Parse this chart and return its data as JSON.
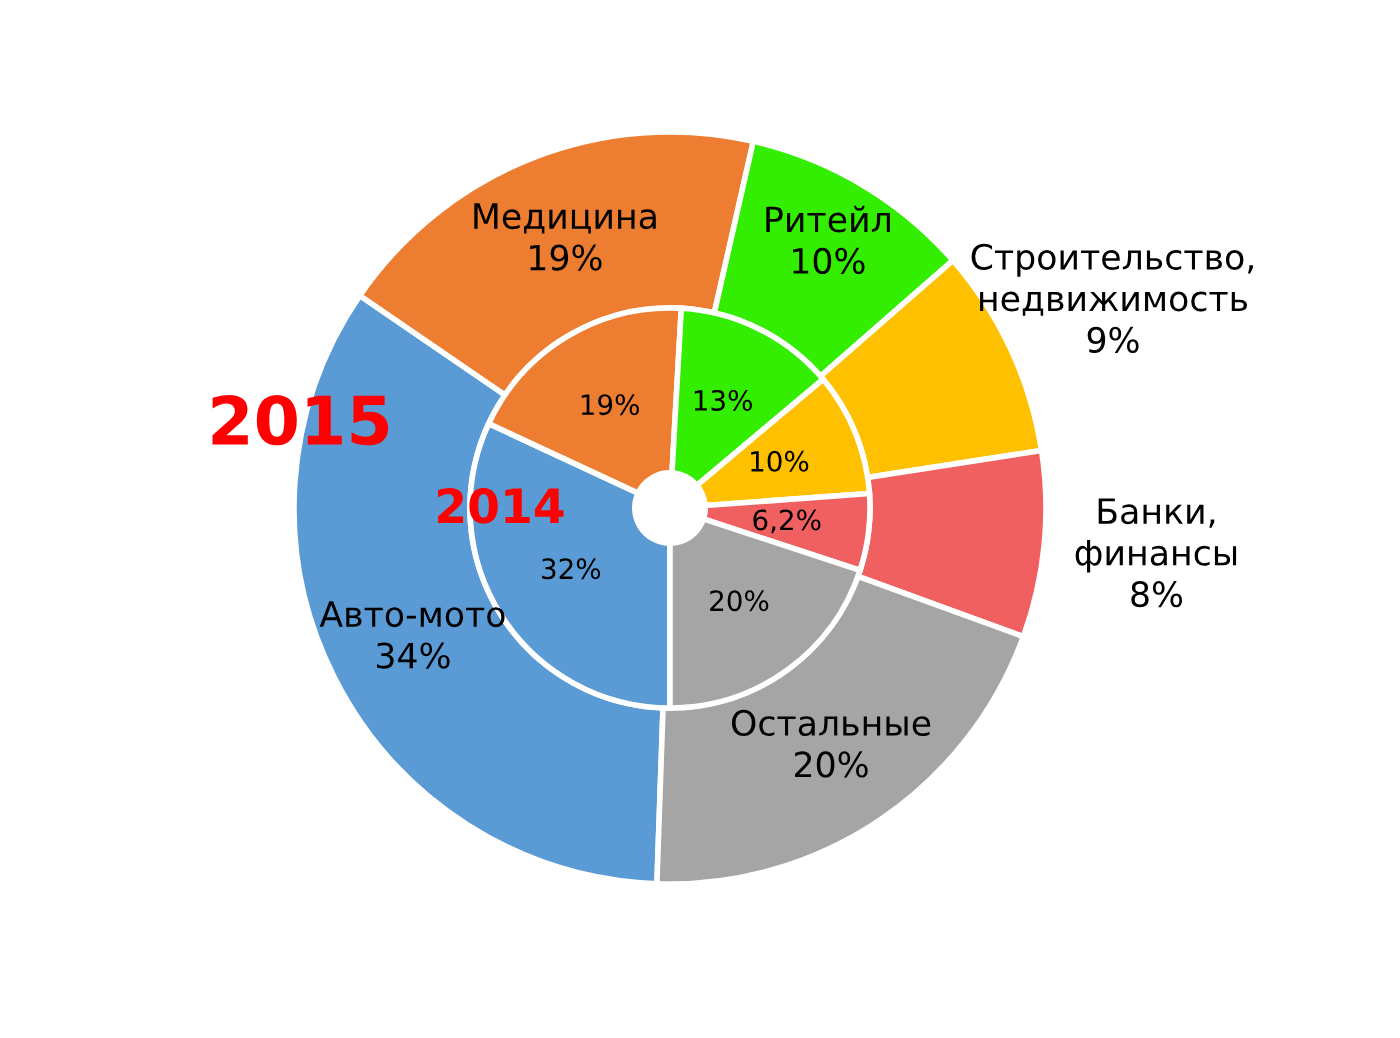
{
  "chart_data": {
    "type": "donut",
    "categories": [
      "Авто-мото",
      "Медицина",
      "Ритейл",
      "Строительство, недвижимость",
      "Банки, финансы",
      "Остальные"
    ],
    "colors": [
      "#5b9bd5",
      "#ed7d31",
      "#33ee00",
      "#ffc000",
      "#f06060",
      "#a5a5a5"
    ],
    "series": [
      {
        "name": "2015",
        "values": [
          34,
          19,
          10,
          9,
          8,
          20
        ],
        "value_labels": [
          "34%",
          "19%",
          "10%",
          "9%",
          "8%",
          "20%"
        ]
      },
      {
        "name": "2014",
        "values": [
          32,
          19,
          13,
          10,
          6.2,
          20
        ],
        "value_labels": [
          "32%",
          "19%",
          "13%",
          "10%",
          "6,2%",
          "20%"
        ]
      }
    ]
  }
}
